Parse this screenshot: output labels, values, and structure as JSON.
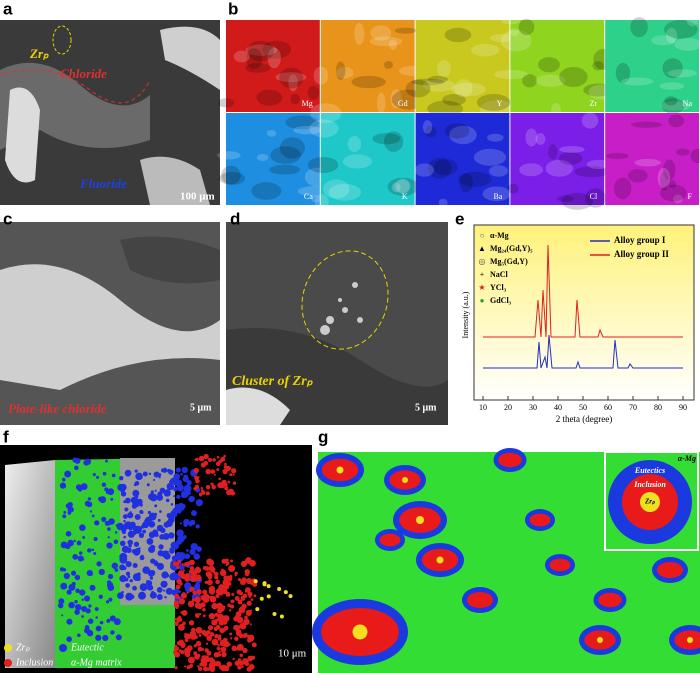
{
  "a": {
    "label": "a",
    "zr": "Zrₚ",
    "chloride": "Chloride",
    "fluoride": "Fluoride",
    "scale_bar": "100 μm"
  },
  "b": {
    "label": "b",
    "elements": [
      "Mg",
      "Gd",
      "Y",
      "Zr",
      "Na",
      "Ca",
      "K",
      "Ba",
      "Cl",
      "F"
    ],
    "colors": [
      "#d11a1a",
      "#e8941a",
      "#c8c81e",
      "#8fd41e",
      "#2ed18a",
      "#1e8fe0",
      "#1ec8c8",
      "#1e2ad8",
      "#7a1ee8",
      "#c81ec8"
    ]
  },
  "c": {
    "label": "c",
    "caption": "Plate-like chloride",
    "scale_bar": "5 μm"
  },
  "d": {
    "label": "d",
    "caption": "Cluster of Zrₚ",
    "scale_bar": "5 μm"
  },
  "e": {
    "label": "e",
    "phases": [
      "α-Mg",
      "Mg₂₄(Gd,Y)₅",
      "Mg₅(Gd,Y)",
      "NaCl",
      "YCl₃",
      "GdCl₃"
    ],
    "series": [
      "Alloy group I",
      "Alloy group II"
    ],
    "y_label": "Intensity (a.u.)",
    "x_label": "2 theta (degree)",
    "xticks": [
      10,
      20,
      30,
      40,
      50,
      60,
      70,
      80,
      90
    ]
  },
  "f": {
    "label": "f",
    "legend": [
      "Zrₚ",
      "Eutectic",
      "Inclusion",
      "α-Mg matrix"
    ],
    "scale_bar": "10 μm"
  },
  "g": {
    "label": "g",
    "inset": [
      "α-Mg",
      "Eutectics",
      "Inclusion",
      "Zrₚ"
    ]
  }
}
